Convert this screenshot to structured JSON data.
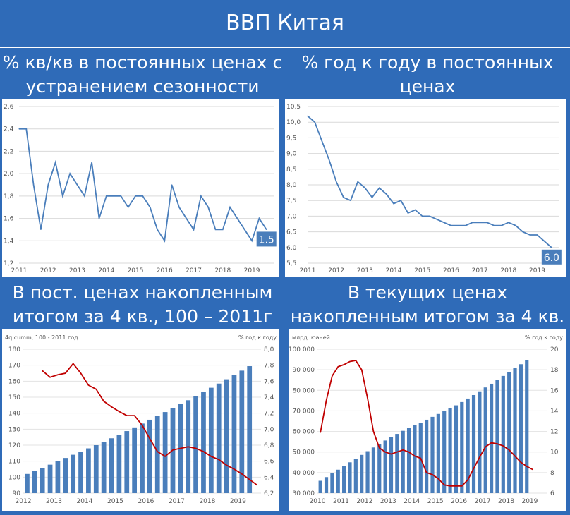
{
  "page_title": "ВВП Китая",
  "panels": [
    {
      "title_line1": "% кв/кв в постоянных ценах с",
      "title_line2": "устранением сезонности"
    },
    {
      "title_line1": "% год к году в постоянных",
      "title_line2": "ценах"
    },
    {
      "title_line1": "В пост. ценах накопленным",
      "title_line2": "итогом за 4 кв., 100 – 2011г"
    },
    {
      "title_line1": "В текущих ценах",
      "title_line2": "накопленным итогом за 4 кв."
    }
  ],
  "chart_data": [
    {
      "type": "line",
      "xticks": [
        "2011",
        "2012",
        "2013",
        "2014",
        "2015",
        "2016",
        "2017",
        "2018",
        "2019"
      ],
      "x_start": 2011.0,
      "x_step": 0.25,
      "yticks": [
        "1,2",
        "1,4",
        "1,6",
        "1,8",
        "2,0",
        "2,2",
        "2,4",
        "2,6"
      ],
      "ylim": [
        1.2,
        2.6
      ],
      "color": "#4a7ebb",
      "values": [
        2.4,
        2.4,
        1.9,
        1.5,
        1.9,
        2.1,
        1.8,
        2.0,
        1.9,
        1.8,
        2.1,
        1.6,
        1.8,
        1.8,
        1.8,
        1.7,
        1.8,
        1.8,
        1.7,
        1.5,
        1.4,
        1.9,
        1.7,
        1.6,
        1.5,
        1.8,
        1.7,
        1.5,
        1.5,
        1.7,
        1.6,
        1.5,
        1.4,
        1.6,
        1.5
      ],
      "last_label": "1.5"
    },
    {
      "type": "line",
      "xticks": [
        "2011",
        "2012",
        "2013",
        "2014",
        "2015",
        "2016",
        "2017",
        "2018",
        "2019"
      ],
      "x_start": 2011.0,
      "x_step": 0.25,
      "yticks": [
        "5,5",
        "6,0",
        "6,5",
        "7,0",
        "7,5",
        "8,0",
        "8,5",
        "9,0",
        "9,5",
        "10,0",
        "10,5"
      ],
      "ylim": [
        5.5,
        10.5
      ],
      "color": "#4a7ebb",
      "values": [
        10.2,
        10.0,
        9.4,
        8.8,
        8.1,
        7.6,
        7.5,
        8.1,
        7.9,
        7.6,
        7.9,
        7.7,
        7.4,
        7.5,
        7.1,
        7.2,
        7.0,
        7.0,
        6.9,
        6.8,
        6.7,
        6.7,
        6.7,
        6.8,
        6.8,
        6.8,
        6.7,
        6.7,
        6.8,
        6.7,
        6.5,
        6.4,
        6.4,
        6.2,
        6.0
      ],
      "last_label": "6.0"
    },
    {
      "type": "bar+line",
      "left_label": "4q cumm, 100 - 2011 год",
      "right_label": "% год к году",
      "xticks": [
        "2012",
        "2013",
        "2014",
        "2015",
        "2016",
        "2017",
        "2018",
        "2019"
      ],
      "x_start": 2012.0,
      "x_step": 0.25,
      "yticks_left": [
        "90",
        "100",
        "110",
        "120",
        "130",
        "140",
        "150",
        "160",
        "170",
        "180"
      ],
      "ylim_left": [
        90,
        180
      ],
      "yticks_right": [
        "6,2",
        "6,4",
        "6,6",
        "6,8",
        "7,0",
        "7,2",
        "7,4",
        "7,6",
        "7,8",
        "8,0"
      ],
      "ylim_right": [
        6.2,
        8.0
      ],
      "bar_color": "#4a7ebb",
      "line_color": "#c00000",
      "bars": [
        102,
        104,
        105.8,
        107.8,
        110,
        112,
        114,
        116,
        118,
        120,
        122,
        124.3,
        126.5,
        128.8,
        131.1,
        133.5,
        135.9,
        138.3,
        140.7,
        143.1,
        145.6,
        148.1,
        150.7,
        153.3,
        155.9,
        158.5,
        161.2,
        163.9,
        166.6,
        169.4
      ],
      "line_x_start": 2012.5,
      "line": [
        7.73,
        7.65,
        7.68,
        7.7,
        7.82,
        7.7,
        7.55,
        7.5,
        7.35,
        7.28,
        7.22,
        7.17,
        7.17,
        7.05,
        6.88,
        6.72,
        6.66,
        6.74,
        6.76,
        6.78,
        6.76,
        6.72,
        6.66,
        6.62,
        6.55,
        6.5,
        6.44,
        6.37,
        6.3
      ]
    },
    {
      "type": "bar+line",
      "left_label": "млрд. юаней",
      "right_label": "% год к году",
      "xticks": [
        "2010",
        "2011",
        "2012",
        "2013",
        "2014",
        "2015",
        "2016",
        "2017",
        "2018",
        "2019"
      ],
      "x_start": 2010.0,
      "x_step": 0.25,
      "yticks_left": [
        "30 000",
        "40 000",
        "50 000",
        "60 000",
        "70 000",
        "80 000",
        "90 000",
        "100 000"
      ],
      "ylim_left": [
        30000,
        100000
      ],
      "yticks_right": [
        "6",
        "8",
        "10",
        "12",
        "14",
        "16",
        "18",
        "20"
      ],
      "ylim_right": [
        6,
        20
      ],
      "bar_color": "#4a7ebb",
      "line_color": "#c00000",
      "bars": [
        36000,
        37800,
        39600,
        41400,
        43200,
        45000,
        46800,
        48600,
        50400,
        52200,
        54000,
        55600,
        57200,
        58800,
        60300,
        61700,
        63000,
        64300,
        65700,
        67100,
        68500,
        69800,
        71200,
        72700,
        74300,
        76000,
        77700,
        79500,
        81400,
        83200,
        85100,
        87000,
        88900,
        90800,
        92700,
        94700
      ],
      "line_x_start": 2010.0,
      "line": [
        11.9,
        15.0,
        17.4,
        18.3,
        18.5,
        18.8,
        18.9,
        18.0,
        15.2,
        12.0,
        10.4,
        10.0,
        9.8,
        10.0,
        10.2,
        10.0,
        9.6,
        9.4,
        8.0,
        7.8,
        7.4,
        6.8,
        6.7,
        6.7,
        6.7,
        7.3,
        8.4,
        9.5,
        10.5,
        10.9,
        10.8,
        10.6,
        10.2,
        9.6,
        9.0,
        8.6,
        8.3
      ]
    }
  ]
}
